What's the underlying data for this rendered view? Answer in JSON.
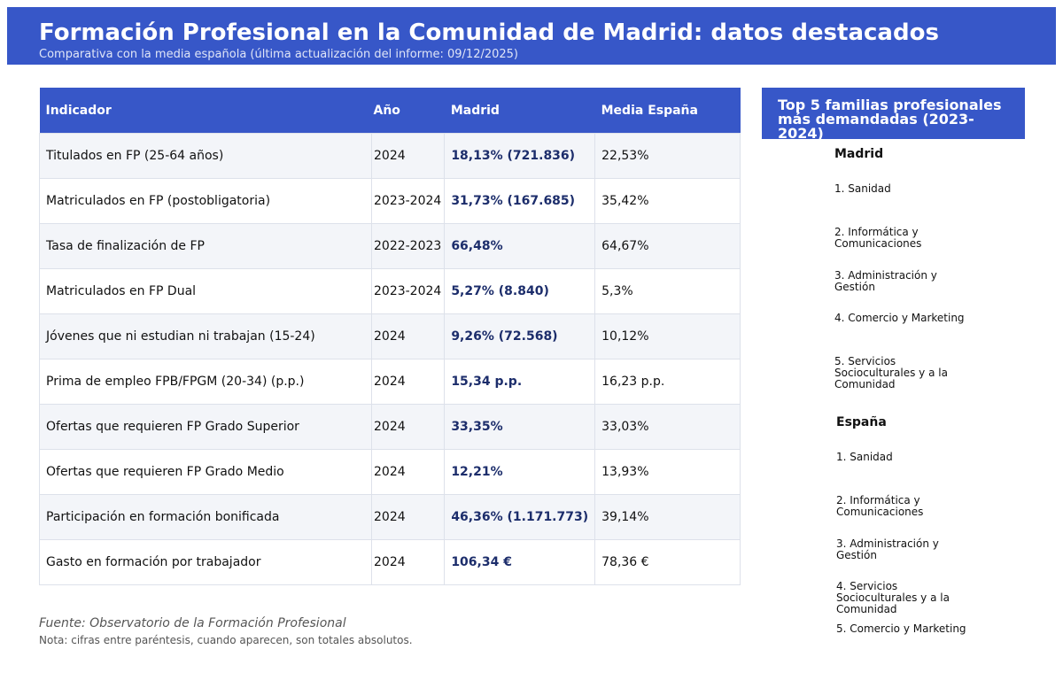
{
  "header": {
    "title": "Formación Profesional en la Comunidad de Madrid: datos destacados",
    "subtitle": "Comparativa con la media española (última actualización del informe: 09/12/2025)"
  },
  "table": {
    "columns": [
      "Indicador",
      "Año",
      "Madrid",
      "Media España"
    ],
    "rows": [
      [
        "Titulados en FP (25-64 años)",
        "2024",
        "18,13% (721.836)",
        "22,53%"
      ],
      [
        "Matriculados en FP (postobligatoria)",
        "2023-2024",
        "31,73% (167.685)",
        "35,42%"
      ],
      [
        "Tasa de finalización de FP",
        "2022-2023",
        "66,48%",
        "64,67%"
      ],
      [
        "Matriculados en FP Dual",
        "2023-2024",
        "5,27% (8.840)",
        "5,3%"
      ],
      [
        "Jóvenes que ni estudian ni trabajan (15-24)",
        "2024",
        "9,26% (72.568)",
        "10,12%"
      ],
      [
        "Prima de empleo FPB/FPGM (20-34) (p.p.)",
        "2024",
        "15,34 p.p.",
        "16,23 p.p."
      ],
      [
        "Ofertas que requieren FP Grado Superior",
        "2024",
        "33,35%",
        "33,03%"
      ],
      [
        "Ofertas que requieren FP Grado Medio",
        "2024",
        "12,21%",
        "13,93%"
      ],
      [
        "Participación en formación bonificada",
        "2024",
        "46,36% (1.171.773)",
        "39,14%"
      ],
      [
        "Gasto en formación por trabajador",
        "2024",
        "106,34 €",
        "78,36 €"
      ]
    ]
  },
  "sidebar": {
    "title": "Top 5 familias profesionales más demandadas (2023-2024)",
    "madrid": {
      "heading": "Madrid",
      "items": [
        "1. Sanidad",
        "2. Informática y Comunicaciones",
        "3. Administración y Gestión",
        "4. Comercio y Marketing",
        "5. Servicios Socioculturales y a la Comunidad"
      ]
    },
    "espana": {
      "heading": "España",
      "items": [
        "1. Sanidad",
        "2. Informática y Comunicaciones",
        "3. Administración y Gestión",
        "4. Servicios Socioculturales y a la Comunidad",
        "5. Comercio y Marketing"
      ]
    }
  },
  "footer": {
    "source": "Fuente: Observatorio de la Formación Profesional",
    "note": "Nota: cifras entre paréntesis, cuando aparecen, son totales absolutos."
  },
  "colors": {
    "accent": "#3757c8",
    "madrid_value": "#1c2d6b"
  }
}
